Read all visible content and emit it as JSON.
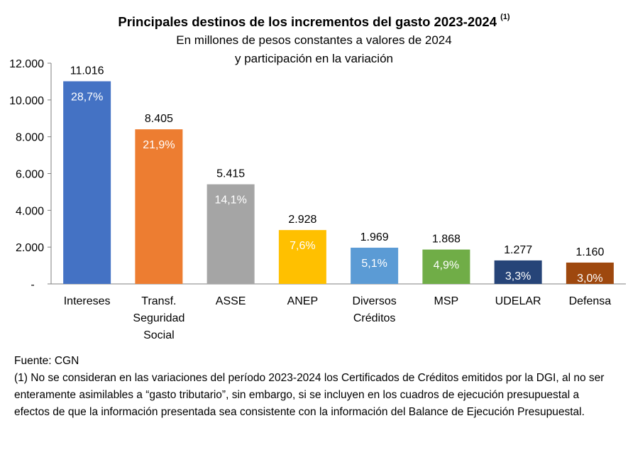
{
  "title": "Principales destinos de los incrementos del gasto 2023-2024",
  "title_note": "(1)",
  "subtitle_line1": "En millones de pesos constantes a valores de 2024",
  "subtitle_line2": "y participación en la variación",
  "footer": {
    "source": "Fuente: CGN",
    "note": "(1) No se consideran en las variaciones del período 2023-2024 los Certificados de Créditos emitidos por la DGI, al no ser enteramente asimilables a “gasto tributario”, sin embargo, si se incluyen en los cuadros de ejecución presupuestal a efectos de que la información presentada sea consistente con la información del Balance de Ejecución Presupuestal."
  },
  "chart_data": {
    "type": "bar",
    "categories": [
      [
        "Intereses"
      ],
      [
        "Transf.",
        "Seguridad",
        "Social"
      ],
      [
        "ASSE"
      ],
      [
        "ANEP"
      ],
      [
        "Diversos",
        "Créditos"
      ],
      [
        "MSP"
      ],
      [
        "UDELAR"
      ],
      [
        "Defensa"
      ]
    ],
    "values": [
      11016,
      8405,
      5415,
      2928,
      1969,
      1868,
      1277,
      1160
    ],
    "value_labels": [
      "11.016",
      "8.405",
      "5.415",
      "2.928",
      "1.969",
      "1.868",
      "1.277",
      "1.160"
    ],
    "share_labels": [
      "28,7%",
      "21,9%",
      "14,1%",
      "7,6%",
      "5,1%",
      "4,9%",
      "3,3%",
      "3,0%"
    ],
    "colors": [
      "#4472C4",
      "#ED7D31",
      "#A5A5A5",
      "#FFC000",
      "#5B9BD5",
      "#70AD47",
      "#264478",
      "#9E480E"
    ],
    "yticks": [
      0,
      2000,
      4000,
      6000,
      8000,
      10000,
      12000
    ],
    "ytick_labels": [
      "-",
      "2.000",
      "4.000",
      "6.000",
      "8.000",
      "10.000",
      "12.000"
    ],
    "ylim": [
      0,
      12000
    ],
    "grid": false,
    "legend": "none"
  }
}
